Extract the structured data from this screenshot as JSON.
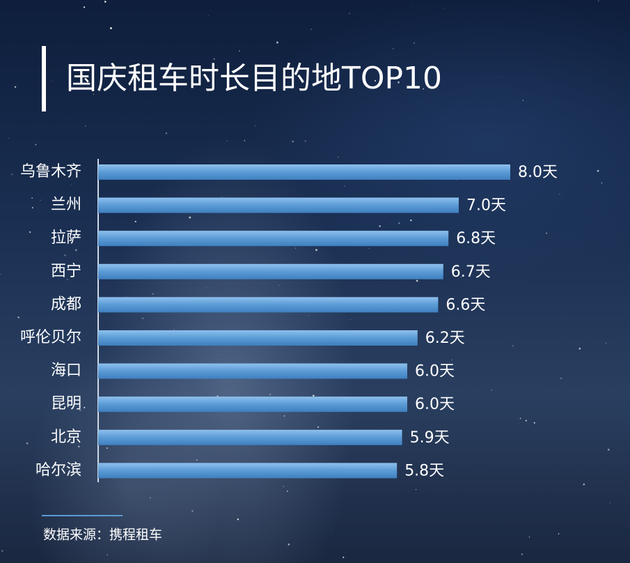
{
  "chart_data": {
    "type": "bar",
    "orientation": "horizontal",
    "title": "国庆租车时长目的地TOP10",
    "categories": [
      "乌鲁木齐",
      "兰州",
      "拉萨",
      "西宁",
      "成都",
      "呼伦贝尔",
      "海口",
      "昆明",
      "北京",
      "哈尔滨"
    ],
    "values": [
      8.0,
      7.0,
      6.8,
      6.7,
      6.6,
      6.2,
      6.0,
      6.0,
      5.9,
      5.8
    ],
    "value_labels": [
      "8.0天",
      "7.0天",
      "6.8天",
      "6.7天",
      "6.6天",
      "6.2天",
      "6.0天",
      "6.0天",
      "5.9天",
      "5.8天"
    ],
    "color": "#5b9bd5",
    "source": "数据来源：携程租车"
  }
}
